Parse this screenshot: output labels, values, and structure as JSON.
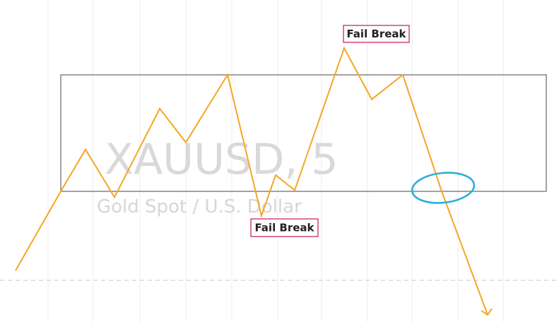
{
  "chart_data": {
    "type": "line",
    "watermark": {
      "symbol": "XAUUSD, 5",
      "description": "Gold Spot / U.S. Dollar"
    },
    "annotations": [
      {
        "text": "Fail Break",
        "at_point": 13
      },
      {
        "text": "Fail Break",
        "at_point": 8
      }
    ],
    "range_box": {
      "top_value": 100,
      "bottom_value": 0,
      "from_point": 1,
      "to_point": 15
    },
    "series": [
      {
        "values": [
          -68,
          0,
          36,
          -5,
          71,
          42,
          100,
          28,
          -21,
          14,
          1,
          66,
          123,
          79,
          100,
          -50,
          -106
        ]
      }
    ],
    "colors": {
      "line": "#f5a623",
      "box": "#444444",
      "circle": "#2bafd6",
      "annotation_border": "#c2185b",
      "grid": "#ececec",
      "dashed": "#d0d0d0"
    }
  }
}
